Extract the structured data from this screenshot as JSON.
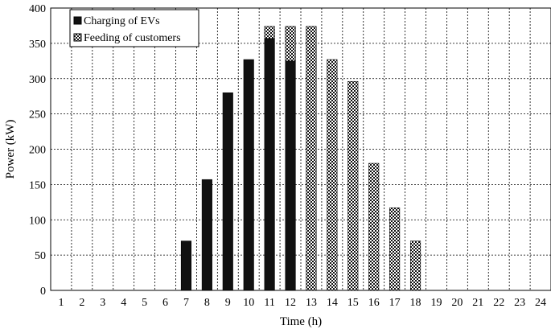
{
  "chart_data": {
    "type": "bar",
    "stacked": true,
    "categories": [
      "1",
      "2",
      "3",
      "4",
      "5",
      "6",
      "7",
      "8",
      "9",
      "10",
      "11",
      "12",
      "13",
      "14",
      "15",
      "16",
      "17",
      "18",
      "19",
      "20",
      "21",
      "22",
      "23",
      "24"
    ],
    "series": [
      {
        "name": "Charging of EVs",
        "pattern": "solid",
        "color": "#111111",
        "values": [
          0,
          0,
          0,
          0,
          0,
          0,
          70,
          157,
          280,
          327,
          357,
          325,
          0,
          0,
          0,
          0,
          0,
          0,
          0,
          0,
          0,
          0,
          0,
          0
        ]
      },
      {
        "name": "Feeding of customers",
        "pattern": "checkered",
        "color": "#111111",
        "values": [
          0,
          0,
          0,
          0,
          0,
          0,
          0,
          0,
          0,
          0,
          17,
          49,
          374,
          327,
          296,
          180,
          117,
          70,
          0,
          0,
          0,
          0,
          0,
          0
        ]
      }
    ],
    "title": "",
    "xlabel": "Time (h)",
    "ylabel": "Power (kW)",
    "ylim": [
      0,
      400
    ],
    "yticks": [
      0,
      50,
      100,
      150,
      200,
      250,
      300,
      350,
      400
    ],
    "grid": "dashed",
    "legend_position": "top-left"
  }
}
